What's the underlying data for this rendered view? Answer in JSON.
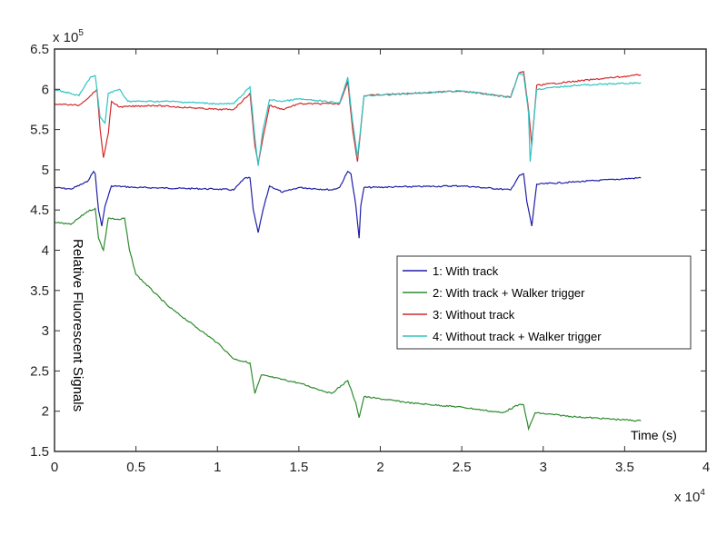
{
  "chart_data": {
    "type": "line",
    "title": "",
    "xlabel": "Time (s)",
    "ylabel": "Relative Fluorescent Signals",
    "x_multiplier": "x 10^4",
    "y_multiplier": "x 10^5",
    "x_multiplier_base": "x 10",
    "x_multiplier_exp": "4",
    "y_multiplier_base": "x 10",
    "y_multiplier_exp": "5",
    "xlim": [
      0,
      4
    ],
    "ylim": [
      1.5,
      6.5
    ],
    "xticks": [
      "0",
      "0.5",
      "1",
      "1.5",
      "2",
      "2.5",
      "3",
      "3.5",
      "4"
    ],
    "yticks": [
      "1.5",
      "2",
      "2.5",
      "3",
      "3.5",
      "4",
      "4.5",
      "5",
      "5.5",
      "6",
      "6.5"
    ],
    "grid": false,
    "legend_placement": "center-right",
    "series": [
      {
        "name": "1: With track",
        "color": "#1f1fa8",
        "x": [
          0,
          0.1,
          0.2,
          0.24,
          0.25,
          0.27,
          0.29,
          0.31,
          0.35,
          0.5,
          1.0,
          1.1,
          1.17,
          1.2,
          1.22,
          1.25,
          1.28,
          1.32,
          1.4,
          1.5,
          1.7,
          1.75,
          1.8,
          1.82,
          1.85,
          1.87,
          1.88,
          1.9,
          2.5,
          2.8,
          2.85,
          2.88,
          2.9,
          2.93,
          2.96,
          3.2,
          3.6
        ],
        "y": [
          4.78,
          4.76,
          4.85,
          4.98,
          4.95,
          4.5,
          4.3,
          4.55,
          4.8,
          4.78,
          4.76,
          4.75,
          4.9,
          4.9,
          4.5,
          4.22,
          4.5,
          4.8,
          4.72,
          4.78,
          4.75,
          4.78,
          4.98,
          4.95,
          4.55,
          4.15,
          4.55,
          4.78,
          4.8,
          4.75,
          4.92,
          4.95,
          4.6,
          4.3,
          4.82,
          4.85,
          4.9
        ]
      },
      {
        "name": "2: With track + Walker trigger",
        "color": "#2e8b2e",
        "x": [
          0,
          0.1,
          0.2,
          0.25,
          0.27,
          0.3,
          0.33,
          0.4,
          0.43,
          0.46,
          0.5,
          0.7,
          1.0,
          1.1,
          1.2,
          1.23,
          1.27,
          1.5,
          1.7,
          1.8,
          1.85,
          1.87,
          1.9,
          2.2,
          2.5,
          2.75,
          2.85,
          2.88,
          2.91,
          2.95,
          3.2,
          3.6
        ],
        "y": [
          4.35,
          4.32,
          4.48,
          4.52,
          4.15,
          4.0,
          4.4,
          4.38,
          4.4,
          4.0,
          3.7,
          3.3,
          2.85,
          2.65,
          2.6,
          2.22,
          2.45,
          2.35,
          2.22,
          2.38,
          2.1,
          1.92,
          2.18,
          2.1,
          2.05,
          1.98,
          2.08,
          2.08,
          1.78,
          1.98,
          1.93,
          1.88
        ]
      },
      {
        "name": "3: Without track",
        "color": "#d42a2a",
        "x": [
          0,
          0.15,
          0.22,
          0.26,
          0.28,
          0.3,
          0.33,
          0.35,
          0.4,
          0.6,
          1.0,
          1.1,
          1.2,
          1.23,
          1.25,
          1.28,
          1.32,
          1.4,
          1.5,
          1.75,
          1.8,
          1.83,
          1.86,
          1.9,
          2.2,
          2.5,
          2.8,
          2.85,
          2.88,
          2.91,
          2.93,
          2.96,
          3.2,
          3.6
        ],
        "y": [
          5.82,
          5.8,
          5.92,
          6.0,
          5.5,
          5.15,
          5.45,
          5.85,
          5.78,
          5.8,
          5.75,
          5.75,
          5.95,
          5.3,
          5.08,
          5.4,
          5.8,
          5.75,
          5.82,
          5.82,
          6.1,
          5.5,
          5.1,
          5.92,
          5.95,
          5.98,
          5.9,
          6.2,
          6.22,
          5.75,
          5.3,
          6.05,
          6.1,
          6.18
        ]
      },
      {
        "name": "4: Without track + Walker trigger",
        "color": "#2ec4c4",
        "x": [
          0,
          0.15,
          0.22,
          0.25,
          0.28,
          0.31,
          0.33,
          0.4,
          0.45,
          0.7,
          1.0,
          1.1,
          1.2,
          1.23,
          1.25,
          1.28,
          1.32,
          1.4,
          1.5,
          1.75,
          1.8,
          1.83,
          1.86,
          1.9,
          2.2,
          2.5,
          2.8,
          2.85,
          2.88,
          2.91,
          2.92,
          2.96,
          3.2,
          3.6
        ],
        "y": [
          6.0,
          5.92,
          6.15,
          6.17,
          5.65,
          5.58,
          5.95,
          6.0,
          5.85,
          5.85,
          5.82,
          5.82,
          6.03,
          5.4,
          5.05,
          5.5,
          5.87,
          5.85,
          5.88,
          5.83,
          6.15,
          5.6,
          5.15,
          5.92,
          5.95,
          5.98,
          5.9,
          6.2,
          6.18,
          5.7,
          5.1,
          6.0,
          6.05,
          6.08
        ]
      }
    ]
  }
}
